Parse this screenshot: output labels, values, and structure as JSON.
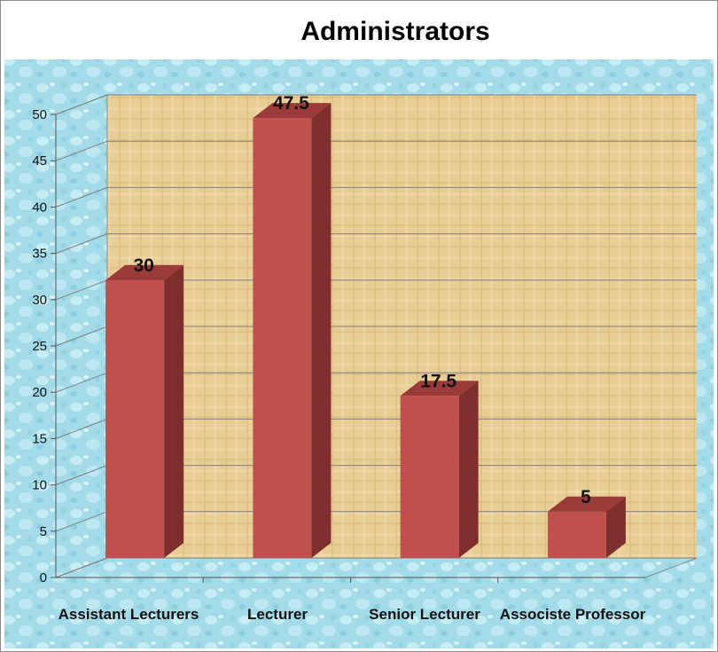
{
  "chart_data": {
    "type": "bar",
    "title": "Administrators",
    "categories": [
      "Assistant Lecturers",
      "Lecturer",
      "Senior Lecturer",
      "Associste Professor"
    ],
    "values": [
      30,
      47.5,
      17.5,
      5
    ],
    "data_labels": [
      "30",
      "47.5",
      "17.5",
      "5"
    ],
    "yticks": [
      "0",
      "5",
      "10",
      "15",
      "20",
      "25",
      "30",
      "35",
      "40",
      "45",
      "50"
    ],
    "ylim": [
      0,
      50
    ],
    "grid": true,
    "legend": "none",
    "colors": {
      "bar_front": "#c0504d",
      "bar_side": "#7e2f2d",
      "bar_top": "#9b3b39",
      "back_wall": "#e6c98c",
      "outer_bg": "#9fd8e6",
      "gridline": "#7f7f7f"
    }
  }
}
